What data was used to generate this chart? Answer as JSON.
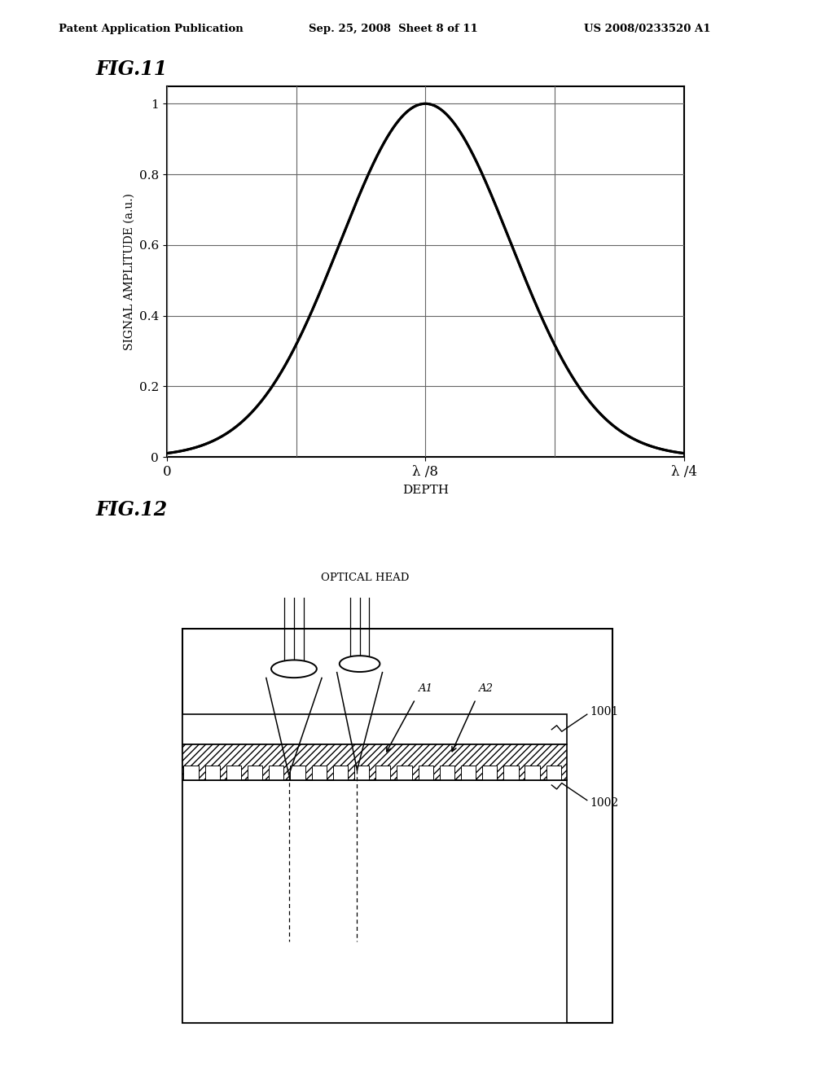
{
  "header_left": "Patent Application Publication",
  "header_mid": "Sep. 25, 2008  Sheet 8 of 11",
  "header_right": "US 2008/0233520 A1",
  "fig11_label": "FIG.11",
  "fig12_label": "FIG.12",
  "fig11_ylabel": "SIGNAL AMPLITUDE (a.u.)",
  "fig11_xlabel": "DEPTH",
  "fig11_yticks": [
    0,
    0.2,
    0.4,
    0.6,
    0.8,
    1
  ],
  "fig11_xtick_labels": [
    "0",
    "λ /8",
    "λ /4"
  ],
  "fig11_ylim": [
    0,
    1.05
  ],
  "fig11_xlim": [
    0,
    1
  ],
  "optical_head_label": "OPTICAL HEAD",
  "label_1001": "1001",
  "label_1002": "1002",
  "label_A1": "A1",
  "label_A2": "A2",
  "bg_color": "#ffffff",
  "line_color": "#000000",
  "sigma": 0.165
}
